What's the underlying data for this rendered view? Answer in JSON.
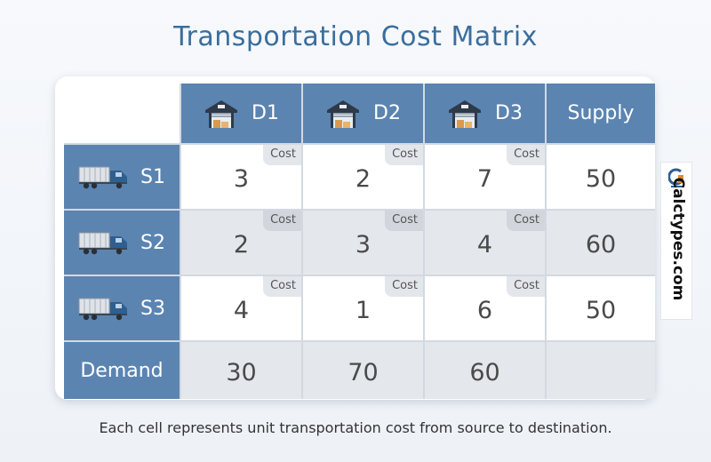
{
  "title": "Transportation Cost Matrix",
  "headers": {
    "d1": "D1",
    "d2": "D2",
    "d3": "D3",
    "supply": "Supply"
  },
  "cost_label": "Cost",
  "rows": {
    "s1": {
      "label": "S1",
      "costs": [
        "3",
        "2",
        "7"
      ],
      "supply": "50"
    },
    "s2": {
      "label": "S2",
      "costs": [
        "2",
        "3",
        "4"
      ],
      "supply": "60"
    },
    "s3": {
      "label": "S3",
      "costs": [
        "4",
        "1",
        "6"
      ],
      "supply": "50"
    }
  },
  "demand": {
    "label": "Demand",
    "values": [
      "30",
      "70",
      "60"
    ]
  },
  "caption": "Each cell represents unit transportation cost from source to destination.",
  "brand": {
    "name": "Calctypes.com"
  },
  "colors": {
    "header_bg": "#5b84b1",
    "title": "#3a6e9e",
    "alt_row": "#e4e7ec"
  },
  "icons": {
    "destination": "warehouse-icon",
    "source": "truck-icon"
  }
}
